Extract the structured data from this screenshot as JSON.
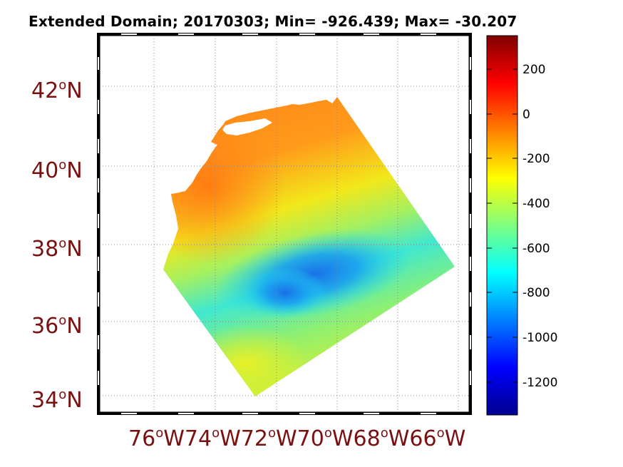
{
  "title": "Extended Domain; 20170303; Min= -926.439; Max= -30.207",
  "lat_labels": [
    {
      "deg": "42",
      "hemi": "N"
    },
    {
      "deg": "40",
      "hemi": "N"
    },
    {
      "deg": "38",
      "hemi": "N"
    },
    {
      "deg": "36",
      "hemi": "N"
    },
    {
      "deg": "34",
      "hemi": "N"
    }
  ],
  "lon_labels": [
    {
      "deg": "76",
      "hemi": "W"
    },
    {
      "deg": "74",
      "hemi": "W"
    },
    {
      "deg": "72",
      "hemi": "W"
    },
    {
      "deg": "70",
      "hemi": "W"
    },
    {
      "deg": "68",
      "hemi": "W"
    },
    {
      "deg": "66",
      "hemi": "W"
    }
  ],
  "colorbar": {
    "labels": [
      "200",
      "0",
      "-200",
      "-400",
      "-600",
      "-800",
      "-1000",
      "-1200"
    ],
    "range": [
      -1350,
      350
    ],
    "colormap": "jet"
  },
  "colors": {
    "label_red": "#7b1010",
    "grid": "#888888"
  }
}
